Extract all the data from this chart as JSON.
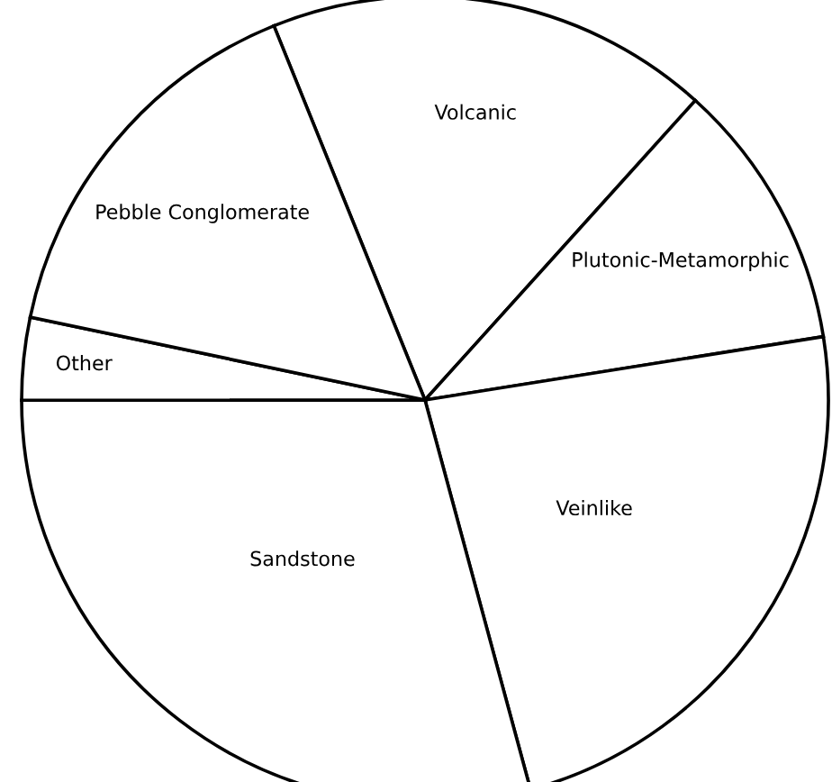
{
  "chart_data": {
    "type": "pie",
    "categories": [
      "Volcanic",
      "Plutonic-Metamorphic",
      "Veinlike",
      "Sandstone",
      "Other",
      "Pebble Conglomerate"
    ],
    "values": [
      17.8,
      10.8,
      23.3,
      29.2,
      3.3,
      15.6
    ],
    "colors": [
      "#ffffff",
      "#ffffff",
      "#ffffff",
      "#ffffff",
      "#ffffff",
      "#ffffff"
    ]
  }
}
